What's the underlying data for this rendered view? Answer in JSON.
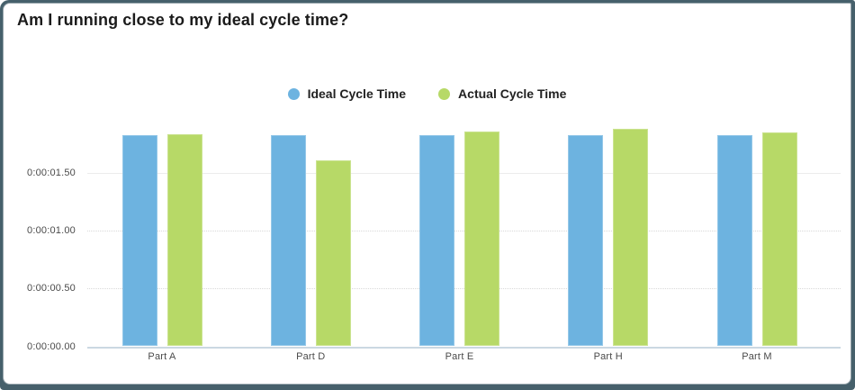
{
  "title": "Am I running close to my ideal cycle time?",
  "colors": {
    "frame": "#46606b",
    "card_background": "#ffffff",
    "ideal_series": "#6db3e0",
    "actual_series": "#b7d967",
    "grid_solid": "#ececec",
    "grid_dotted": "#d9d9d9",
    "axis_baseline": "#cbd8e2",
    "title_text": "#1b1b1b",
    "axis_text": "#4a4a4a"
  },
  "chart_data": {
    "type": "bar",
    "title": "Am I running close to my ideal cycle time?",
    "categories": [
      "Part A",
      "Part D",
      "Part E",
      "Part H",
      "Part M"
    ],
    "series": [
      {
        "name": "Ideal Cycle Time",
        "color": "#6db3e0",
        "values": [
          1.83,
          1.83,
          1.83,
          1.83,
          1.83
        ]
      },
      {
        "name": "Actual Cycle Time",
        "color": "#b7d967",
        "values": [
          1.84,
          1.61,
          1.86,
          1.88,
          1.85
        ]
      }
    ],
    "value_unit": "seconds",
    "yticks": [
      {
        "value": 1.5,
        "label": "0:00:01.50"
      },
      {
        "value": 1.0,
        "label": "0:00:01.00"
      },
      {
        "value": 0.5,
        "label": "0:00:00.50"
      },
      {
        "value": 0.0,
        "label": "0:00:00.00"
      }
    ],
    "ylim": [
      0,
      2.0
    ],
    "xlabel": "",
    "ylabel": "",
    "grid": true,
    "legend_position": "top-center"
  }
}
